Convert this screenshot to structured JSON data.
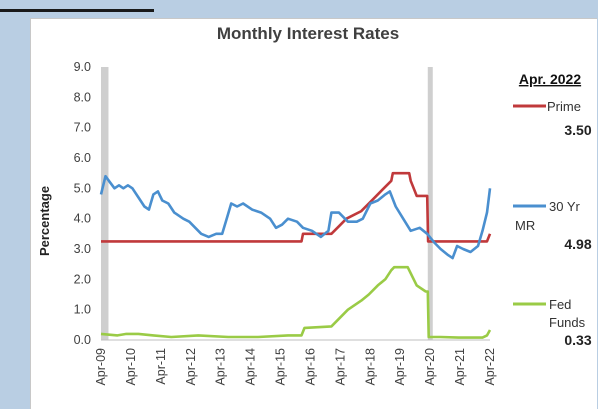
{
  "chart_data": {
    "type": "line",
    "title": "Monthly Interest Rates",
    "xlabel": "",
    "ylabel": "Percentage",
    "ylim": [
      0,
      9
    ],
    "yticks": [
      "0.0",
      "1.0",
      "2.0",
      "3.0",
      "4.0",
      "5.0",
      "6.0",
      "7.0",
      "8.0",
      "9.0"
    ],
    "xlim": [
      2009.25,
      2022.25
    ],
    "xticks": [
      {
        "x": 2009.25,
        "label": "Apr-09"
      },
      {
        "x": 2010.25,
        "label": "Apr-10"
      },
      {
        "x": 2011.25,
        "label": "Apr-11"
      },
      {
        "x": 2012.25,
        "label": "Apr-12"
      },
      {
        "x": 2013.25,
        "label": "Apr-13"
      },
      {
        "x": 2014.25,
        "label": "Apr-14"
      },
      {
        "x": 2015.25,
        "label": "Apr-15"
      },
      {
        "x": 2016.25,
        "label": "Apr-16"
      },
      {
        "x": 2017.25,
        "label": "Apr-17"
      },
      {
        "x": 2018.25,
        "label": "Apr-18"
      },
      {
        "x": 2019.25,
        "label": "Apr-19"
      },
      {
        "x": 2020.25,
        "label": "Apr-20"
      },
      {
        "x": 2021.25,
        "label": "Apr-21"
      },
      {
        "x": 2022.25,
        "label": "Apr-22"
      }
    ],
    "recession_periods": [
      [
        2009.25,
        2009.5
      ],
      [
        2020.17,
        2020.33
      ]
    ],
    "grid": false,
    "legend_heading": "Apr. 2022",
    "legend_position": "right",
    "series": [
      {
        "name": "Prime",
        "color": "#c0393b",
        "latest_value": "3.50",
        "points": [
          [
            2009.25,
            3.25
          ],
          [
            2015.95,
            3.25
          ],
          [
            2016.0,
            3.5
          ],
          [
            2016.95,
            3.5
          ],
          [
            2017.2,
            3.75
          ],
          [
            2017.45,
            4.0
          ],
          [
            2017.95,
            4.25
          ],
          [
            2018.2,
            4.5
          ],
          [
            2018.45,
            4.75
          ],
          [
            2018.7,
            5.0
          ],
          [
            2018.95,
            5.25
          ],
          [
            2019.0,
            5.5
          ],
          [
            2019.55,
            5.5
          ],
          [
            2019.6,
            5.25
          ],
          [
            2019.7,
            5.0
          ],
          [
            2019.8,
            4.75
          ],
          [
            2020.15,
            4.75
          ],
          [
            2020.18,
            3.25
          ],
          [
            2022.15,
            3.25
          ],
          [
            2022.25,
            3.5
          ]
        ]
      },
      {
        "name": "30 Yr MR",
        "color": "#4a8fcf",
        "latest_value": "4.98",
        "points": [
          [
            2009.25,
            4.8
          ],
          [
            2009.4,
            5.4
          ],
          [
            2009.55,
            5.2
          ],
          [
            2009.7,
            5.0
          ],
          [
            2009.85,
            5.1
          ],
          [
            2010.0,
            5.0
          ],
          [
            2010.15,
            5.1
          ],
          [
            2010.3,
            5.0
          ],
          [
            2010.5,
            4.7
          ],
          [
            2010.7,
            4.4
          ],
          [
            2010.85,
            4.3
          ],
          [
            2011.0,
            4.8
          ],
          [
            2011.15,
            4.9
          ],
          [
            2011.3,
            4.6
          ],
          [
            2011.5,
            4.5
          ],
          [
            2011.7,
            4.2
          ],
          [
            2012.0,
            4.0
          ],
          [
            2012.2,
            3.9
          ],
          [
            2012.4,
            3.7
          ],
          [
            2012.6,
            3.5
          ],
          [
            2012.85,
            3.4
          ],
          [
            2013.1,
            3.5
          ],
          [
            2013.3,
            3.5
          ],
          [
            2013.45,
            4.0
          ],
          [
            2013.6,
            4.5
          ],
          [
            2013.8,
            4.4
          ],
          [
            2014.0,
            4.5
          ],
          [
            2014.3,
            4.3
          ],
          [
            2014.6,
            4.2
          ],
          [
            2014.9,
            4.0
          ],
          [
            2015.1,
            3.7
          ],
          [
            2015.3,
            3.8
          ],
          [
            2015.5,
            4.0
          ],
          [
            2015.8,
            3.9
          ],
          [
            2016.0,
            3.7
          ],
          [
            2016.3,
            3.6
          ],
          [
            2016.6,
            3.4
          ],
          [
            2016.85,
            3.6
          ],
          [
            2016.95,
            4.2
          ],
          [
            2017.2,
            4.2
          ],
          [
            2017.5,
            3.9
          ],
          [
            2017.8,
            3.9
          ],
          [
            2018.0,
            4.0
          ],
          [
            2018.25,
            4.5
          ],
          [
            2018.5,
            4.6
          ],
          [
            2018.75,
            4.8
          ],
          [
            2018.9,
            4.9
          ],
          [
            2019.1,
            4.4
          ],
          [
            2019.35,
            4.0
          ],
          [
            2019.6,
            3.6
          ],
          [
            2019.9,
            3.7
          ],
          [
            2020.15,
            3.5
          ],
          [
            2020.4,
            3.2
          ],
          [
            2020.6,
            3.0
          ],
          [
            2020.85,
            2.8
          ],
          [
            2021.0,
            2.7
          ],
          [
            2021.15,
            3.1
          ],
          [
            2021.35,
            3.0
          ],
          [
            2021.6,
            2.9
          ],
          [
            2021.85,
            3.1
          ],
          [
            2022.0,
            3.6
          ],
          [
            2022.15,
            4.2
          ],
          [
            2022.25,
            5.0
          ]
        ]
      },
      {
        "name": "Fed Funds",
        "color": "#9acb46",
        "latest_value": "0.33",
        "points": [
          [
            2009.25,
            0.2
          ],
          [
            2009.8,
            0.15
          ],
          [
            2010.1,
            0.2
          ],
          [
            2010.5,
            0.2
          ],
          [
            2011.0,
            0.15
          ],
          [
            2011.6,
            0.1
          ],
          [
            2012.5,
            0.15
          ],
          [
            2013.5,
            0.1
          ],
          [
            2014.5,
            0.1
          ],
          [
            2015.5,
            0.15
          ],
          [
            2015.95,
            0.15
          ],
          [
            2016.05,
            0.4
          ],
          [
            2016.95,
            0.45
          ],
          [
            2017.2,
            0.7
          ],
          [
            2017.5,
            1.0
          ],
          [
            2017.95,
            1.3
          ],
          [
            2018.2,
            1.5
          ],
          [
            2018.5,
            1.8
          ],
          [
            2018.75,
            2.0
          ],
          [
            2018.95,
            2.3
          ],
          [
            2019.05,
            2.4
          ],
          [
            2019.5,
            2.4
          ],
          [
            2019.65,
            2.1
          ],
          [
            2019.8,
            1.8
          ],
          [
            2020.1,
            1.6
          ],
          [
            2020.17,
            1.6
          ],
          [
            2020.2,
            0.1
          ],
          [
            2020.6,
            0.1
          ],
          [
            2021.2,
            0.08
          ],
          [
            2022.0,
            0.08
          ],
          [
            2022.15,
            0.15
          ],
          [
            2022.25,
            0.33
          ]
        ]
      }
    ]
  }
}
